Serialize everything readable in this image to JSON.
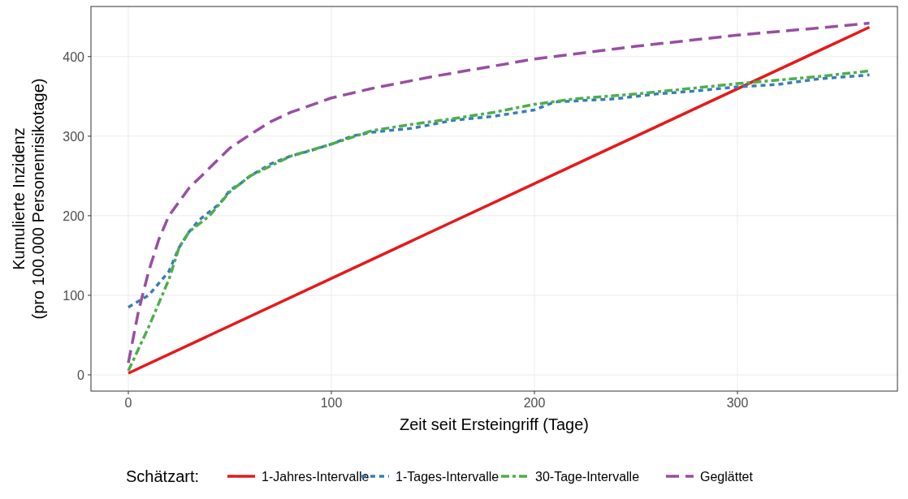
{
  "chart_data": {
    "type": "line",
    "xlabel": "Zeit seit Ersteingriff (Tage)",
    "ylabel": "Kumulierte Inzidenz\n(pro 100.000 Personenrisikotage)",
    "legend_title": "Schätzart:",
    "legend": "bottom",
    "grid": true,
    "xlim": [
      -18.4,
      378.8
    ],
    "xticks": [
      0,
      100,
      200,
      300
    ],
    "ylim": [
      -20.4,
      463
    ],
    "yticks": [
      0,
      100,
      200,
      300,
      400
    ],
    "series": [
      {
        "name": "1-Jahres-Intervalle",
        "color": "#e41a1c",
        "line_style": "solid",
        "x": [
          0,
          365
        ],
        "values": [
          2,
          437
        ]
      },
      {
        "name": "1-Tages-Intervalle",
        "color": "#377eb8",
        "line_style": "dotted",
        "x": [
          0,
          10,
          20,
          25,
          30,
          35,
          40,
          45,
          50,
          55,
          60,
          70,
          80,
          90,
          100,
          110,
          120,
          140,
          160,
          180,
          200,
          210,
          240,
          260,
          280,
          300,
          320,
          340,
          365
        ],
        "values": [
          85,
          100,
          130,
          160,
          180,
          195,
          205,
          215,
          232,
          240,
          250,
          265,
          275,
          282,
          290,
          300,
          305,
          310,
          320,
          325,
          333,
          343,
          347,
          353,
          357,
          362,
          365,
          372,
          377
        ]
      },
      {
        "name": "30-Tage-Intervalle",
        "color": "#4daf4a",
        "line_style": "dashed",
        "x": [
          0,
          10,
          20,
          25,
          30,
          40,
          50,
          60,
          80,
          100,
          120,
          140,
          160,
          180,
          200,
          220,
          250,
          300,
          340,
          365
        ],
        "values": [
          5,
          60,
          120,
          160,
          180,
          200,
          230,
          250,
          275,
          290,
          307,
          315,
          322,
          330,
          340,
          347,
          353,
          366,
          375,
          382
        ]
      },
      {
        "name": "Geglättet",
        "color": "#984ea3",
        "line_style": "dashed",
        "x": [
          0,
          5,
          10,
          15,
          20,
          30,
          40,
          50,
          60,
          70,
          80,
          100,
          120,
          150,
          200,
          250,
          300,
          340,
          365
        ],
        "values": [
          15,
          80,
          130,
          170,
          200,
          235,
          260,
          285,
          302,
          318,
          330,
          348,
          360,
          375,
          397,
          413,
          427,
          436,
          442
        ]
      }
    ]
  }
}
